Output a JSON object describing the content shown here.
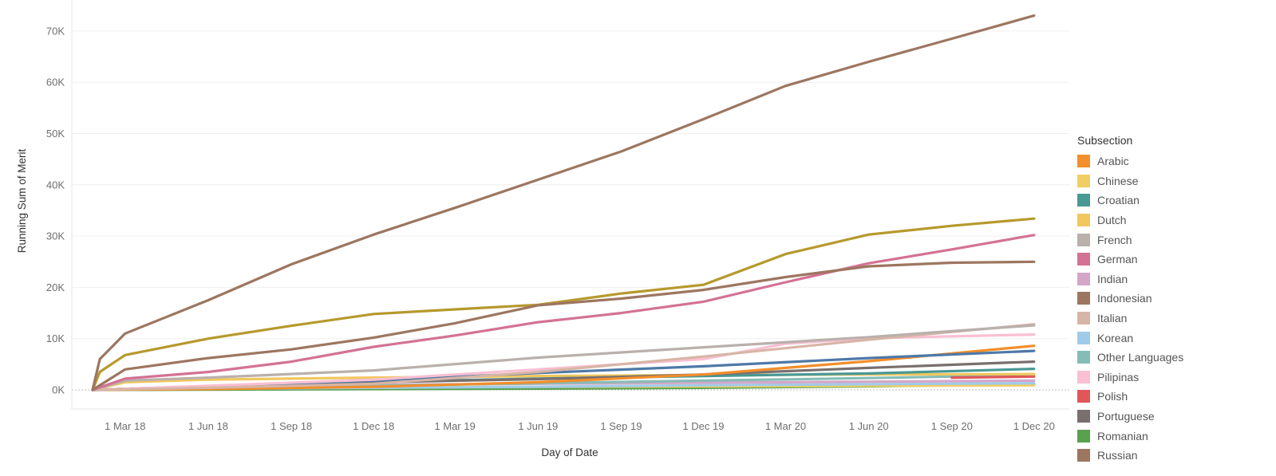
{
  "chart_data": {
    "type": "line",
    "xlabel": "Day of Date",
    "ylabel": "Running Sum of Merit",
    "x_ticks": [
      {
        "date": "2018-03-01",
        "label": "1 Mar 18"
      },
      {
        "date": "2018-06-01",
        "label": "1 Jun 18"
      },
      {
        "date": "2018-09-01",
        "label": "1 Sep 18"
      },
      {
        "date": "2018-12-01",
        "label": "1 Dec 18"
      },
      {
        "date": "2019-03-01",
        "label": "1 Mar 19"
      },
      {
        "date": "2019-06-01",
        "label": "1 Jun 19"
      },
      {
        "date": "2019-09-01",
        "label": "1 Sep 19"
      },
      {
        "date": "2019-12-01",
        "label": "1 Dec 19"
      },
      {
        "date": "2020-03-01",
        "label": "1 Mar 20"
      },
      {
        "date": "2020-06-01",
        "label": "1 Jun 20"
      },
      {
        "date": "2020-09-01",
        "label": "1 Sep 20"
      },
      {
        "date": "2020-12-01",
        "label": "1 Dec 20"
      }
    ],
    "y_ticks": [
      {
        "value": 0,
        "label": "0K"
      },
      {
        "value": 10000,
        "label": "10K"
      },
      {
        "value": 20000,
        "label": "20K"
      },
      {
        "value": 30000,
        "label": "30K"
      },
      {
        "value": 40000,
        "label": "40K"
      },
      {
        "value": 50000,
        "label": "50K"
      },
      {
        "value": 60000,
        "label": "60K"
      },
      {
        "value": 70000,
        "label": "70K"
      }
    ],
    "xlim": [
      "2018-01-01",
      "2021-01-09"
    ],
    "ylim": [
      0,
      75000
    ],
    "grid": "horizontal",
    "legend": {
      "title": "Subsection",
      "placement": "right"
    },
    "series": [
      {
        "name": "Arabic",
        "color": "#f28e2b",
        "points": [
          [
            "2018-01-24",
            0
          ],
          [
            "2018-06-01",
            150
          ],
          [
            "2018-12-01",
            600
          ],
          [
            "2019-06-01",
            1500
          ],
          [
            "2019-12-01",
            3000
          ],
          [
            "2020-06-01",
            5600
          ],
          [
            "2020-12-01",
            8600
          ]
        ]
      },
      {
        "name": "Chinese",
        "color": "#f1ce63",
        "points": [
          [
            "2018-01-24",
            0
          ],
          [
            "2018-06-01",
            300
          ],
          [
            "2018-12-01",
            500
          ],
          [
            "2019-06-01",
            600
          ],
          [
            "2019-12-01",
            700
          ],
          [
            "2020-06-01",
            800
          ],
          [
            "2020-12-01",
            900
          ]
        ]
      },
      {
        "name": "Croatian",
        "color": "#499894",
        "points": [
          [
            "2018-01-24",
            0
          ],
          [
            "2018-06-01",
            600
          ],
          [
            "2018-12-01",
            1600
          ],
          [
            "2019-06-01",
            2200
          ],
          [
            "2019-12-01",
            2700
          ],
          [
            "2020-06-01",
            3200
          ],
          [
            "2020-12-01",
            4100
          ]
        ]
      },
      {
        "name": "Dutch",
        "color": "#f1c75e",
        "points": [
          [
            "2018-01-24",
            0
          ],
          [
            "2018-03-01",
            1500
          ],
          [
            "2018-06-01",
            2000
          ],
          [
            "2018-12-01",
            2400
          ],
          [
            "2019-06-01",
            2700
          ],
          [
            "2019-12-01",
            2900
          ],
          [
            "2020-06-01",
            3000
          ],
          [
            "2020-12-01",
            3100
          ]
        ]
      },
      {
        "name": "French",
        "color": "#bab0ac",
        "points": [
          [
            "2018-01-24",
            0
          ],
          [
            "2018-03-01",
            1800
          ],
          [
            "2018-06-01",
            2400
          ],
          [
            "2018-12-01",
            3800
          ],
          [
            "2019-06-01",
            6300
          ],
          [
            "2019-12-01",
            8300
          ],
          [
            "2020-06-01",
            10300
          ],
          [
            "2020-12-01",
            12600
          ]
        ]
      },
      {
        "name": "German",
        "color": "#d37295",
        "points": [
          [
            "2018-01-24",
            0
          ],
          [
            "2018-03-01",
            2200
          ],
          [
            "2018-06-01",
            3500
          ],
          [
            "2018-09-01",
            5500
          ],
          [
            "2018-12-01",
            8400
          ],
          [
            "2019-03-01",
            10600
          ],
          [
            "2019-06-01",
            13200
          ],
          [
            "2019-09-01",
            15000
          ],
          [
            "2019-12-01",
            17200
          ],
          [
            "2020-03-01",
            21000
          ],
          [
            "2020-06-01",
            24700
          ],
          [
            "2020-09-01",
            27400
          ],
          [
            "2020-12-01",
            30200
          ]
        ]
      },
      {
        "name": "Indian",
        "color": "#d4a6c8",
        "points": [
          [
            "2018-01-24",
            0
          ],
          [
            "2018-06-01",
            500
          ],
          [
            "2018-12-01",
            1000
          ],
          [
            "2019-06-01",
            1200
          ],
          [
            "2019-12-01",
            1400
          ],
          [
            "2020-06-01",
            1600
          ],
          [
            "2020-12-01",
            1800
          ]
        ]
      },
      {
        "name": "Indonesian",
        "color": "#9d7660",
        "points": [
          [
            "2018-01-24",
            0
          ],
          [
            "2018-03-01",
            4000
          ],
          [
            "2018-06-01",
            6200
          ],
          [
            "2018-09-01",
            7900
          ],
          [
            "2018-12-01",
            10200
          ],
          [
            "2019-03-01",
            13000
          ],
          [
            "2019-06-01",
            16500
          ],
          [
            "2019-09-01",
            17800
          ],
          [
            "2019-12-01",
            19500
          ],
          [
            "2020-03-01",
            22000
          ],
          [
            "2020-06-01",
            24100
          ],
          [
            "2020-09-01",
            24800
          ],
          [
            "2020-12-01",
            25000
          ]
        ]
      },
      {
        "name": "Italian",
        "color": "#d7b5a6",
        "points": [
          [
            "2018-01-24",
            0
          ],
          [
            "2018-06-01",
            400
          ],
          [
            "2018-12-01",
            1200
          ],
          [
            "2019-06-01",
            3500
          ],
          [
            "2019-12-01",
            6500
          ],
          [
            "2020-06-01",
            9800
          ],
          [
            "2020-12-01",
            12800
          ]
        ]
      },
      {
        "name": "Korean",
        "color": "#a0cbe8",
        "points": [
          [
            "2018-01-24",
            0
          ],
          [
            "2018-06-01",
            200
          ],
          [
            "2018-12-01",
            400
          ],
          [
            "2019-06-01",
            600
          ],
          [
            "2019-12-01",
            900
          ],
          [
            "2020-06-01",
            1100
          ],
          [
            "2020-12-01",
            1300
          ]
        ]
      },
      {
        "name": "Other Languages",
        "color": "#86bcb6",
        "points": [
          [
            "2018-01-24",
            0
          ],
          [
            "2018-06-01",
            300
          ],
          [
            "2018-12-01",
            800
          ],
          [
            "2019-06-01",
            1300
          ],
          [
            "2019-12-01",
            1800
          ],
          [
            "2020-06-01",
            2300
          ],
          [
            "2020-12-01",
            2900
          ]
        ]
      },
      {
        "name": "Pilipinas",
        "color": "#fabfd2",
        "points": [
          [
            "2018-01-24",
            0
          ],
          [
            "2018-06-01",
            800
          ],
          [
            "2018-12-01",
            2000
          ],
          [
            "2019-06-01",
            4000
          ],
          [
            "2019-12-01",
            6000
          ],
          [
            "2020-03-01",
            9000
          ],
          [
            "2020-06-01",
            10100
          ],
          [
            "2020-12-01",
            10800
          ]
        ]
      },
      {
        "name": "Polish",
        "color": "#e15759",
        "points": [
          [
            "2020-09-01",
            2400
          ],
          [
            "2020-12-01",
            2600
          ]
        ]
      },
      {
        "name": "Portuguese",
        "color": "#79706e",
        "points": [
          [
            "2018-01-24",
            0
          ],
          [
            "2018-06-01",
            700
          ],
          [
            "2018-12-01",
            1500
          ],
          [
            "2019-06-01",
            2100
          ],
          [
            "2019-12-01",
            3000
          ],
          [
            "2020-06-01",
            4300
          ],
          [
            "2020-12-01",
            5500
          ]
        ]
      },
      {
        "name": "Romanian",
        "color": "#59a14f",
        "points": [
          [
            "2018-01-24",
            0
          ],
          [
            "2018-06-01",
            60
          ],
          [
            "2018-12-01",
            150
          ],
          [
            "2019-06-01",
            250
          ],
          [
            "2019-12-01",
            400
          ],
          [
            "2020-06-01",
            700
          ],
          [
            "2020-12-01",
            1100
          ]
        ]
      },
      {
        "name": "Russian",
        "color": "#9d7660",
        "points": [
          [
            "2018-01-24",
            0
          ],
          [
            "2018-02-01",
            6000
          ],
          [
            "2018-03-01",
            11000
          ],
          [
            "2018-06-01",
            17500
          ],
          [
            "2018-09-01",
            24500
          ],
          [
            "2018-12-01",
            30300
          ],
          [
            "2019-03-01",
            35500
          ],
          [
            "2019-06-01",
            41000
          ],
          [
            "2019-09-01",
            46500
          ],
          [
            "2019-12-01",
            52800
          ],
          [
            "2020-03-01",
            59300
          ],
          [
            "2020-06-01",
            64000
          ],
          [
            "2020-09-01",
            68500
          ],
          [
            "2020-12-01",
            73000
          ]
        ]
      },
      {
        "name": "",
        "color": "#b6992d",
        "points": [
          [
            "2018-01-24",
            0
          ],
          [
            "2018-02-01",
            3500
          ],
          [
            "2018-03-01",
            6800
          ],
          [
            "2018-06-01",
            10000
          ],
          [
            "2018-09-01",
            12500
          ],
          [
            "2018-12-01",
            14800
          ],
          [
            "2019-03-01",
            15700
          ],
          [
            "2019-06-01",
            16600
          ],
          [
            "2019-09-01",
            18800
          ],
          [
            "2019-12-01",
            20500
          ],
          [
            "2020-03-01",
            26500
          ],
          [
            "2020-06-01",
            30300
          ],
          [
            "2020-09-01",
            32000
          ],
          [
            "2020-12-01",
            33400
          ]
        ]
      },
      {
        "name": "",
        "color": "#4e79a7",
        "points": [
          [
            "2018-01-24",
            0
          ],
          [
            "2018-06-01",
            700
          ],
          [
            "2018-12-01",
            1800
          ],
          [
            "2019-06-01",
            3300
          ],
          [
            "2019-12-01",
            4600
          ],
          [
            "2020-06-01",
            6200
          ],
          [
            "2020-12-01",
            7600
          ]
        ]
      }
    ]
  }
}
